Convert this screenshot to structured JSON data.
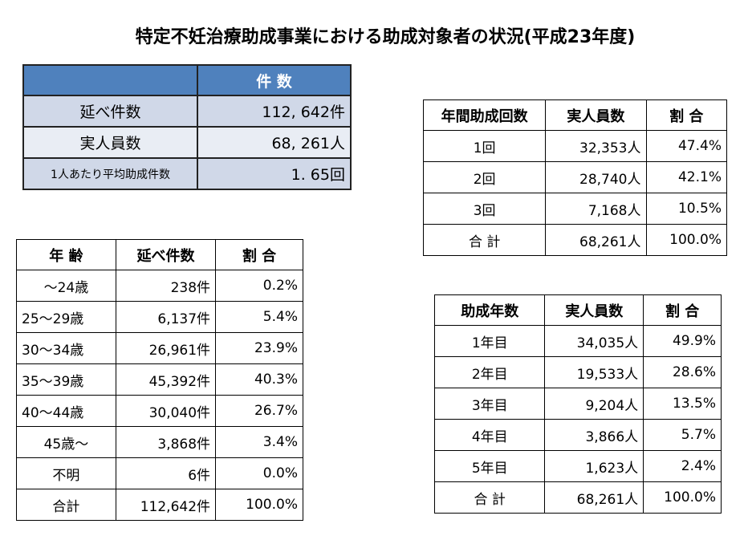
{
  "title": "特定不妊治療助成事業における助成対象者の状況(平成23年度)",
  "summary": {
    "header": "件 数",
    "rows": [
      {
        "label": "延べ件数",
        "value": "112, 642件"
      },
      {
        "label": "実人員数",
        "value": "68, 261人"
      },
      {
        "label": "1人あたり平均助成件数",
        "value": "1. 65回"
      }
    ]
  },
  "annual": {
    "headers": [
      "年間助成回数",
      "実人員数",
      "割 合"
    ],
    "rows": [
      [
        "1回",
        "32,353人",
        "47.4%"
      ],
      [
        "2回",
        "28,740人",
        "42.1%"
      ],
      [
        "3回",
        "7,168人",
        "10.5%"
      ],
      [
        "合 計",
        "68,261人",
        "100.0%"
      ]
    ]
  },
  "age": {
    "headers": [
      "年 齢",
      "延べ件数",
      "割 合"
    ],
    "rows": [
      [
        "～24歳",
        "238件",
        "0.2%"
      ],
      [
        "25～29歳",
        "6,137件",
        "5.4%"
      ],
      [
        "30～34歳",
        "26,961件",
        "23.9%"
      ],
      [
        "35～39歳",
        "45,392件",
        "40.3%"
      ],
      [
        "40～44歳",
        "30,040件",
        "26.7%"
      ],
      [
        "45歳～",
        "3,868件",
        "3.4%"
      ],
      [
        "不明",
        "6件",
        "0.0%"
      ],
      [
        "合計",
        "112,642件",
        "100.0%"
      ]
    ]
  },
  "years": {
    "headers": [
      "助成年数",
      "実人員数",
      "割 合"
    ],
    "rows": [
      [
        "1年目",
        "34,035人",
        "49.9%"
      ],
      [
        "2年目",
        "19,533人",
        "28.6%"
      ],
      [
        "3年目",
        "9,204人",
        "13.5%"
      ],
      [
        "4年目",
        "3,866人",
        "5.7%"
      ],
      [
        "5年目",
        "1,623人",
        "2.4%"
      ],
      [
        "合 計",
        "68,261人",
        "100.0%"
      ]
    ]
  }
}
